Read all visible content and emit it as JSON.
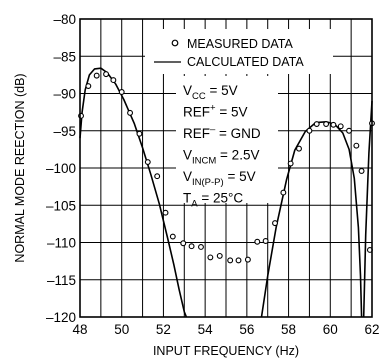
{
  "chart_data": {
    "type": "line",
    "title": "",
    "xlabel": "INPUT FREQUENCY (Hz)",
    "ylabel": "NORMAL MODE REECTION (dB)",
    "xlim": [
      48,
      62
    ],
    "ylim": [
      -120,
      -80
    ],
    "xticks": [
      48,
      50,
      52,
      54,
      56,
      58,
      60,
      62
    ],
    "xtick_labels": [
      "48",
      "50",
      "52",
      "54",
      "56",
      "58",
      "60",
      "62"
    ],
    "yticks": [
      -80,
      -85,
      -90,
      -95,
      -100,
      -105,
      -110,
      -115,
      -120
    ],
    "ytick_labels": [
      "–80",
      "–85",
      "–90",
      "–95",
      "–100",
      "–105",
      "–110",
      "–115",
      "–120"
    ],
    "grid": true,
    "legend_position": "top-right",
    "legend": [
      {
        "marker": "circle",
        "label": "MEASURED DATA"
      },
      {
        "marker": "line",
        "label": "CALCULATED DATA"
      }
    ],
    "conditions": [
      {
        "main": "V",
        "sub": "CC",
        "sup": "",
        "rest": " = 5V"
      },
      {
        "main": "REF",
        "sub": "",
        "sup": "+",
        "rest": " = 5V"
      },
      {
        "main": "REF",
        "sub": "",
        "sup": "–",
        "rest": " = GND"
      },
      {
        "main": "V",
        "sub": "INCM",
        "sup": "",
        "rest": " = 2.5V"
      },
      {
        "main": "V",
        "sub": "IN(P-P)",
        "sup": "",
        "rest": " = 5V"
      },
      {
        "main": "T",
        "sub": "A",
        "sup": "",
        "rest": " = 25°C"
      }
    ],
    "series": [
      {
        "name": "MEASURED DATA",
        "kind": "points",
        "x": [
          48.05,
          48.4,
          48.8,
          49.25,
          49.6,
          50.0,
          50.4,
          50.85,
          51.25,
          51.7,
          52.1,
          52.45,
          52.95,
          53.35,
          53.8,
          54.25,
          54.7,
          55.2,
          55.6,
          56.05,
          56.5,
          56.9,
          57.35,
          57.75,
          58.1,
          58.5,
          59.0,
          59.35,
          59.8,
          60.15,
          60.5,
          60.9,
          61.25,
          61.5,
          61.9,
          62.0
        ],
        "y": [
          -93.0,
          -89.0,
          -87.6,
          -87.4,
          -88.2,
          -89.8,
          -92.6,
          -95.4,
          -99.2,
          -101.1,
          -106.0,
          -109.2,
          -110.1,
          -110.5,
          -110.6,
          -112.0,
          -111.8,
          -112.4,
          -112.4,
          -112.3,
          -109.9,
          -109.8,
          -107.4,
          -103.3,
          -99.4,
          -97.4,
          -95.0,
          -94.1,
          -94.1,
          -94.2,
          -94.4,
          -95.0,
          -97.0,
          -100.4,
          -111.0,
          -94.0
        ]
      },
      {
        "name": "CALCULATED DATA",
        "kind": "line",
        "x": [
          48.0,
          48.1,
          48.25,
          48.45,
          48.7,
          49.0,
          49.3,
          49.7,
          50.1,
          50.6,
          51.0,
          51.4,
          51.8,
          52.2,
          52.5,
          52.75,
          53.0,
          53.1
        ],
        "y": [
          -96.0,
          -92.5,
          -89.5,
          -87.5,
          -86.7,
          -86.6,
          -87.2,
          -88.7,
          -90.8,
          -94.0,
          -97.3,
          -100.9,
          -104.8,
          -109.4,
          -113.0,
          -116.3,
          -119.3,
          -120.0
        ]
      },
      {
        "name": "CALCULATED DATA",
        "kind": "line",
        "x": [
          56.7,
          57.0,
          57.4,
          57.9,
          58.3,
          58.8,
          59.3,
          59.8,
          60.2,
          60.6,
          60.9,
          61.15,
          61.35,
          61.45,
          61.5
        ],
        "y": [
          -120.0,
          -114.5,
          -108.0,
          -101.6,
          -97.6,
          -95.1,
          -93.9,
          -93.8,
          -94.1,
          -95.3,
          -97.5,
          -101.4,
          -108.0,
          -114.5,
          -120.0
        ]
      },
      {
        "name": "CALCULATED DATA",
        "kind": "line",
        "x": [
          61.6,
          61.7,
          61.85,
          62.0
        ],
        "y": [
          -120.0,
          -109.0,
          -98.0,
          -91.0
        ]
      }
    ]
  }
}
